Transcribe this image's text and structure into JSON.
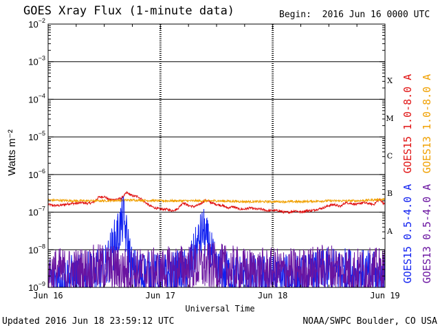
{
  "header": {
    "title": "GOES Xray Flux (1-minute data)",
    "begin": "Begin:  2016 Jun 16 0000 UTC"
  },
  "footer": {
    "updated": "Updated 2016 Jun 18 23:59:12 UTC",
    "credit": "NOAA/SWPC Boulder, CO USA"
  },
  "colors": {
    "goes15_long": "#e01010",
    "goes13_long": "#f0a000",
    "goes15_short": "#1020f0",
    "goes13_short": "#6a14a0",
    "grid": "#000000"
  },
  "chart_data": {
    "type": "line",
    "title": "GOES Xray Flux (1-minute data)",
    "xlabel": "Universal Time",
    "ylabel": "Watts m⁻²",
    "yscale": "log",
    "ylim": [
      1e-09,
      0.01
    ],
    "xlim": [
      0,
      3
    ],
    "x_ticks": [
      {
        "value": 0,
        "label": "Jun 16"
      },
      {
        "value": 1,
        "label": "Jun 17"
      },
      {
        "value": 2,
        "label": "Jun 18"
      },
      {
        "value": 3,
        "label": "Jun 19"
      }
    ],
    "y_ticks": [
      {
        "exp": -9
      },
      {
        "exp": -8
      },
      {
        "exp": -7
      },
      {
        "exp": -6
      },
      {
        "exp": -5
      },
      {
        "exp": -4
      },
      {
        "exp": -3
      },
      {
        "exp": -2
      }
    ],
    "flare_classes": [
      {
        "label": "A",
        "exp": -8
      },
      {
        "label": "B",
        "exp": -7
      },
      {
        "label": "C",
        "exp": -6
      },
      {
        "label": "M",
        "exp": -5
      },
      {
        "label": "X",
        "exp": -4
      }
    ],
    "grid": true,
    "legend_position": "right",
    "series": [
      {
        "name": "GOES15 1.0-8.0 A",
        "color": "#e01010",
        "x": [
          0,
          0.05,
          0.1,
          0.15,
          0.2,
          0.25,
          0.3,
          0.35,
          0.4,
          0.45,
          0.5,
          0.55,
          0.6,
          0.65,
          0.7,
          0.75,
          0.8,
          0.85,
          0.9,
          0.95,
          1.0,
          1.05,
          1.1,
          1.15,
          1.2,
          1.25,
          1.3,
          1.35,
          1.4,
          1.45,
          1.5,
          1.55,
          1.6,
          1.65,
          1.7,
          1.75,
          1.8,
          1.85,
          1.9,
          1.95,
          2.0,
          2.05,
          2.1,
          2.15,
          2.2,
          2.25,
          2.3,
          2.35,
          2.4,
          2.45,
          2.5,
          2.55,
          2.6,
          2.65,
          2.7,
          2.75,
          2.8,
          2.85,
          2.9,
          2.95,
          3.0
        ],
        "y": [
          1.6e-07,
          1.5e-07,
          1.5e-07,
          1.6e-07,
          1.7e-07,
          1.7e-07,
          1.8e-07,
          1.7e-07,
          1.8e-07,
          2.5e-07,
          2.6e-07,
          2.1e-07,
          2.2e-07,
          2.3e-07,
          3.3e-07,
          2.7e-07,
          2.6e-07,
          2e-07,
          1.5e-07,
          1.3e-07,
          1.2e-07,
          1.2e-07,
          1.1e-07,
          1.2e-07,
          1.8e-07,
          1.5e-07,
          1.4e-07,
          1.6e-07,
          2.1e-07,
          1.8e-07,
          1.6e-07,
          1.5e-07,
          1.3e-07,
          1.4e-07,
          1.2e-07,
          1.2e-07,
          1.3e-07,
          1.2e-07,
          1.2e-07,
          1.1e-07,
          1.1e-07,
          1.1e-07,
          1e-07,
          1e-07,
          1.1e-07,
          1e-07,
          1.1e-07,
          1.1e-07,
          1.2e-07,
          1.3e-07,
          1.5e-07,
          1.6e-07,
          1.4e-07,
          1.8e-07,
          1.7e-07,
          1.6e-07,
          1.8e-07,
          1.7e-07,
          1.6e-07,
          2.2e-07,
          1.6e-07
        ]
      },
      {
        "name": "GOES13 1.0-8.0 A",
        "color": "#f0a000",
        "x": [
          0,
          0.25,
          0.5,
          0.75,
          1.0,
          1.25,
          1.5,
          1.75,
          2.0,
          2.25,
          2.5,
          2.75,
          3.0
        ],
        "y": [
          2.1e-07,
          2e-07,
          2e-07,
          2.1e-07,
          2e-07,
          2e-07,
          2e-07,
          1.9e-07,
          1.9e-07,
          1.9e-07,
          2e-07,
          2e-07,
          2.2e-07
        ]
      },
      {
        "name": "GOES15 0.5-4.0 A",
        "color": "#1020f0",
        "x": [
          0,
          0.25,
          0.5,
          0.67,
          0.75,
          1.0,
          1.25,
          1.38,
          1.5,
          1.75,
          2.0,
          2.25,
          2.5,
          2.75,
          3.0
        ],
        "y": [
          2e-09,
          2e-09,
          3e-09,
          8e-08,
          3e-09,
          2e-09,
          3e-09,
          4e-08,
          3e-09,
          2e-09,
          2e-09,
          2e-09,
          3e-09,
          3e-09,
          2e-09
        ]
      },
      {
        "name": "GOES13 0.5-4.0 A",
        "color": "#6a14a0",
        "x": [
          0,
          0.25,
          0.5,
          0.75,
          1.0,
          1.25,
          1.5,
          1.75,
          2.0,
          2.25,
          2.5,
          2.75,
          3.0
        ],
        "y": [
          3e-09,
          3e-09,
          4e-09,
          3e-09,
          3e-09,
          4e-09,
          4e-09,
          3e-09,
          3e-09,
          3e-09,
          4e-09,
          3e-09,
          3e-09
        ]
      }
    ]
  }
}
